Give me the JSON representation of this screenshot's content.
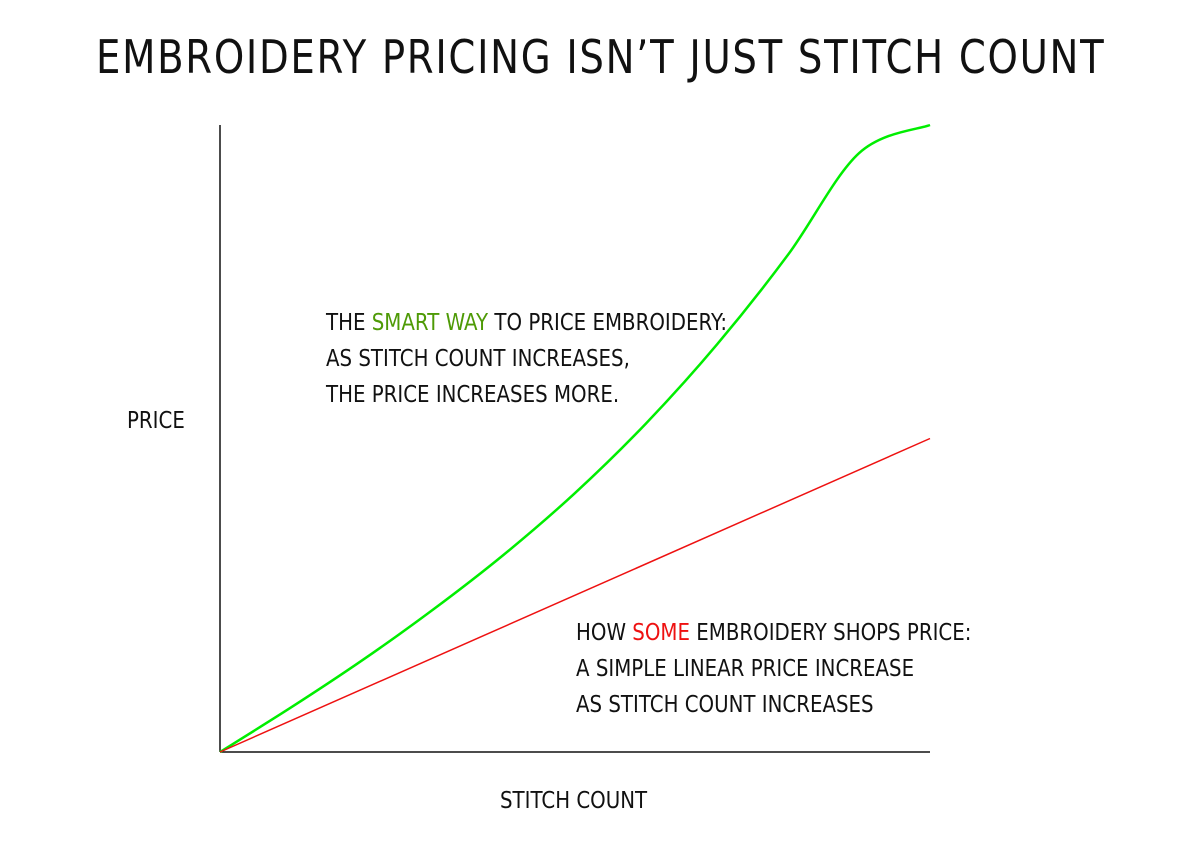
{
  "title": "EMBROIDERY PRICING ISN’T JUST STITCH COUNT",
  "colors": {
    "smart": "#00ee00",
    "smart_text": "#4e9a06",
    "linear": "#ee1111",
    "some_text": "#ee1111",
    "axis": "#111111"
  },
  "chart_data": {
    "type": "line",
    "title": "EMBROIDERY PRICING ISN’T JUST STITCH COUNT",
    "xlabel": "STITCH COUNT",
    "ylabel": "PRICE",
    "grid": false,
    "legend": "none",
    "xlim": [
      0,
      1
    ],
    "ylim": [
      0,
      1
    ],
    "series": [
      {
        "key": "smart",
        "color": "#00ee00",
        "x": [
          0,
          0.1,
          0.2,
          0.3,
          0.4,
          0.5,
          0.6,
          0.7,
          0.8,
          0.9,
          1.0
        ],
        "y": [
          0,
          0.071,
          0.146,
          0.227,
          0.315,
          0.413,
          0.524,
          0.65,
          0.793,
          0.955,
          1.0
        ]
      },
      {
        "key": "linear",
        "color": "#ee1111",
        "x": [
          0,
          1.0
        ],
        "y": [
          0,
          0.5
        ]
      }
    ]
  },
  "annotations": {
    "smart": {
      "prefix": "THE ",
      "highlight": "SMART WAY",
      "suffix": " TO PRICE EMBROIDERY:",
      "line2": "AS STITCH COUNT INCREASES,",
      "line3": "THE PRICE INCREASES MORE."
    },
    "linear": {
      "prefix": "HOW ",
      "highlight": "SOME",
      "suffix": " EMBROIDERY SHOPS PRICE:",
      "line2": "A SIMPLE LINEAR PRICE INCREASE",
      "line3": "AS STITCH COUNT INCREASES"
    }
  }
}
